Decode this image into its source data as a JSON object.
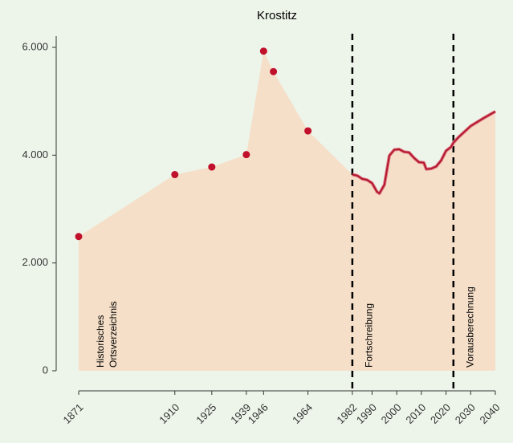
{
  "chart_data": {
    "type": "line",
    "title": "Krostitz",
    "series": [
      {
        "type": "scatter",
        "color": "#c0102b",
        "x": [
          1871,
          1910,
          1925,
          1939,
          1946,
          1950,
          1964
        ],
        "values": [
          2490,
          3640,
          3780,
          4010,
          5930,
          5550,
          4450
        ]
      },
      {
        "type": "line",
        "color": "#b2182b",
        "x": [
          1982,
          1984,
          1986,
          1988,
          1990,
          1992,
          1993,
          1995,
          1997,
          1999,
          2001,
          2003,
          2005,
          2007,
          2009,
          2011,
          2012,
          2014,
          2016,
          2018,
          2020,
          2022,
          2023,
          2025,
          2030,
          2035,
          2040
        ],
        "values": [
          3640,
          3620,
          3560,
          3540,
          3480,
          3320,
          3290,
          3450,
          3990,
          4100,
          4110,
          4060,
          4050,
          3950,
          3870,
          3860,
          3740,
          3750,
          3790,
          3900,
          4080,
          4150,
          4230,
          4330,
          4540,
          4680,
          4810
        ]
      }
    ],
    "area_color": "#f5dfc8",
    "vlines": [
      1982,
      2023
    ],
    "annotations": [
      {
        "x": 1880,
        "lines": [
          "Historisches",
          "Ortsverzeichnis"
        ]
      },
      {
        "x": 1989,
        "lines": [
          "Fortschreibung"
        ]
      },
      {
        "x": 2030,
        "lines": [
          "Vorausberechnung"
        ]
      }
    ],
    "xlim": [
      1862,
      2040
    ],
    "ylim": [
      0,
      6000
    ],
    "xticks": [
      1871,
      1910,
      1925,
      1939,
      1946,
      1964,
      1982,
      1990,
      2000,
      2010,
      2020,
      2030,
      2040
    ],
    "yticks": [
      {
        "value": 0,
        "label": "0"
      },
      {
        "value": 2000,
        "label": "2.000"
      },
      {
        "value": 4000,
        "label": "4.000"
      },
      {
        "value": 6000,
        "label": "6.000"
      }
    ]
  }
}
